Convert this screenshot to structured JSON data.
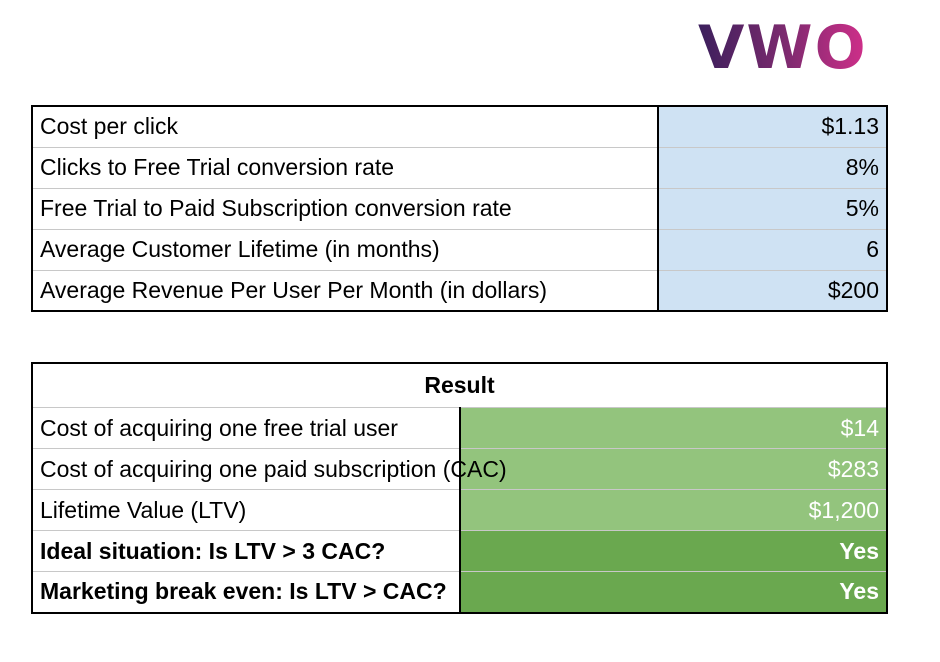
{
  "logo": "VWO",
  "inputs": {
    "rows": [
      [
        "Cost per click",
        "$1.13"
      ],
      [
        "Clicks to Free Trial conversion rate",
        "8%"
      ],
      [
        "Free Trial to Paid Subscription conversion rate",
        "5%"
      ],
      [
        "Average Customer Lifetime (in months)",
        "6"
      ],
      [
        "Average Revenue Per User Per Month (in dollars)",
        "$200"
      ]
    ]
  },
  "result": {
    "title": "Result",
    "rows": [
      [
        "Cost of acquiring one free trial user",
        "$14"
      ],
      [
        "Cost of acquiring one paid subscription (CAC)",
        "$283"
      ],
      [
        "Lifetime Value (LTV)",
        "$1,200"
      ],
      [
        "Ideal situation: Is LTV > 3 CAC?",
        "Yes"
      ],
      [
        "Marketing break even: Is LTV > CAC?",
        "Yes"
      ]
    ]
  }
}
